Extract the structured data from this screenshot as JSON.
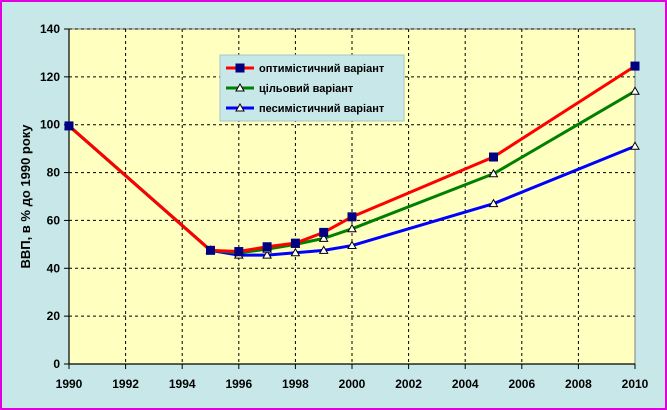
{
  "chart_data": {
    "type": "line",
    "title": "",
    "xlabel": "",
    "ylabel": "ВВП, в % до 1990 року",
    "xlim": [
      1990,
      2010
    ],
    "ylim": [
      0,
      140
    ],
    "x_ticks": [
      1990,
      1992,
      1994,
      1996,
      1998,
      2000,
      2002,
      2004,
      2006,
      2008,
      2010
    ],
    "y_ticks": [
      0,
      20,
      40,
      60,
      80,
      100,
      120,
      140
    ],
    "grid": true,
    "legend_position": "top-center",
    "plot_background": "#FFFFC0",
    "series": [
      {
        "name": "оптимістичний варіант",
        "color": "#FF0000",
        "marker": "square",
        "x": [
          1990,
          1995,
          1996,
          1997,
          1998,
          1999,
          2000,
          2005,
          2010
        ],
        "y": [
          99.5,
          47.5,
          47.0,
          49.0,
          50.5,
          55.0,
          61.5,
          86.5,
          124.5
        ]
      },
      {
        "name": "цільовий варіант",
        "color": "#008000",
        "marker": "triangle",
        "x": [
          1990,
          1995,
          1996,
          1997,
          1998,
          1999,
          2000,
          2005,
          2010
        ],
        "y": [
          99.5,
          47.5,
          46.5,
          48.0,
          50.0,
          52.5,
          56.5,
          79.5,
          114.0
        ]
      },
      {
        "name": "песимістичний варіант",
        "color": "#0000FF",
        "marker": "triangle",
        "x": [
          1990,
          1995,
          1996,
          1997,
          1998,
          1999,
          2000,
          2005,
          2010
        ],
        "y": [
          99.5,
          47.5,
          45.5,
          45.5,
          46.5,
          47.5,
          49.5,
          67.0,
          91.0
        ]
      }
    ]
  }
}
